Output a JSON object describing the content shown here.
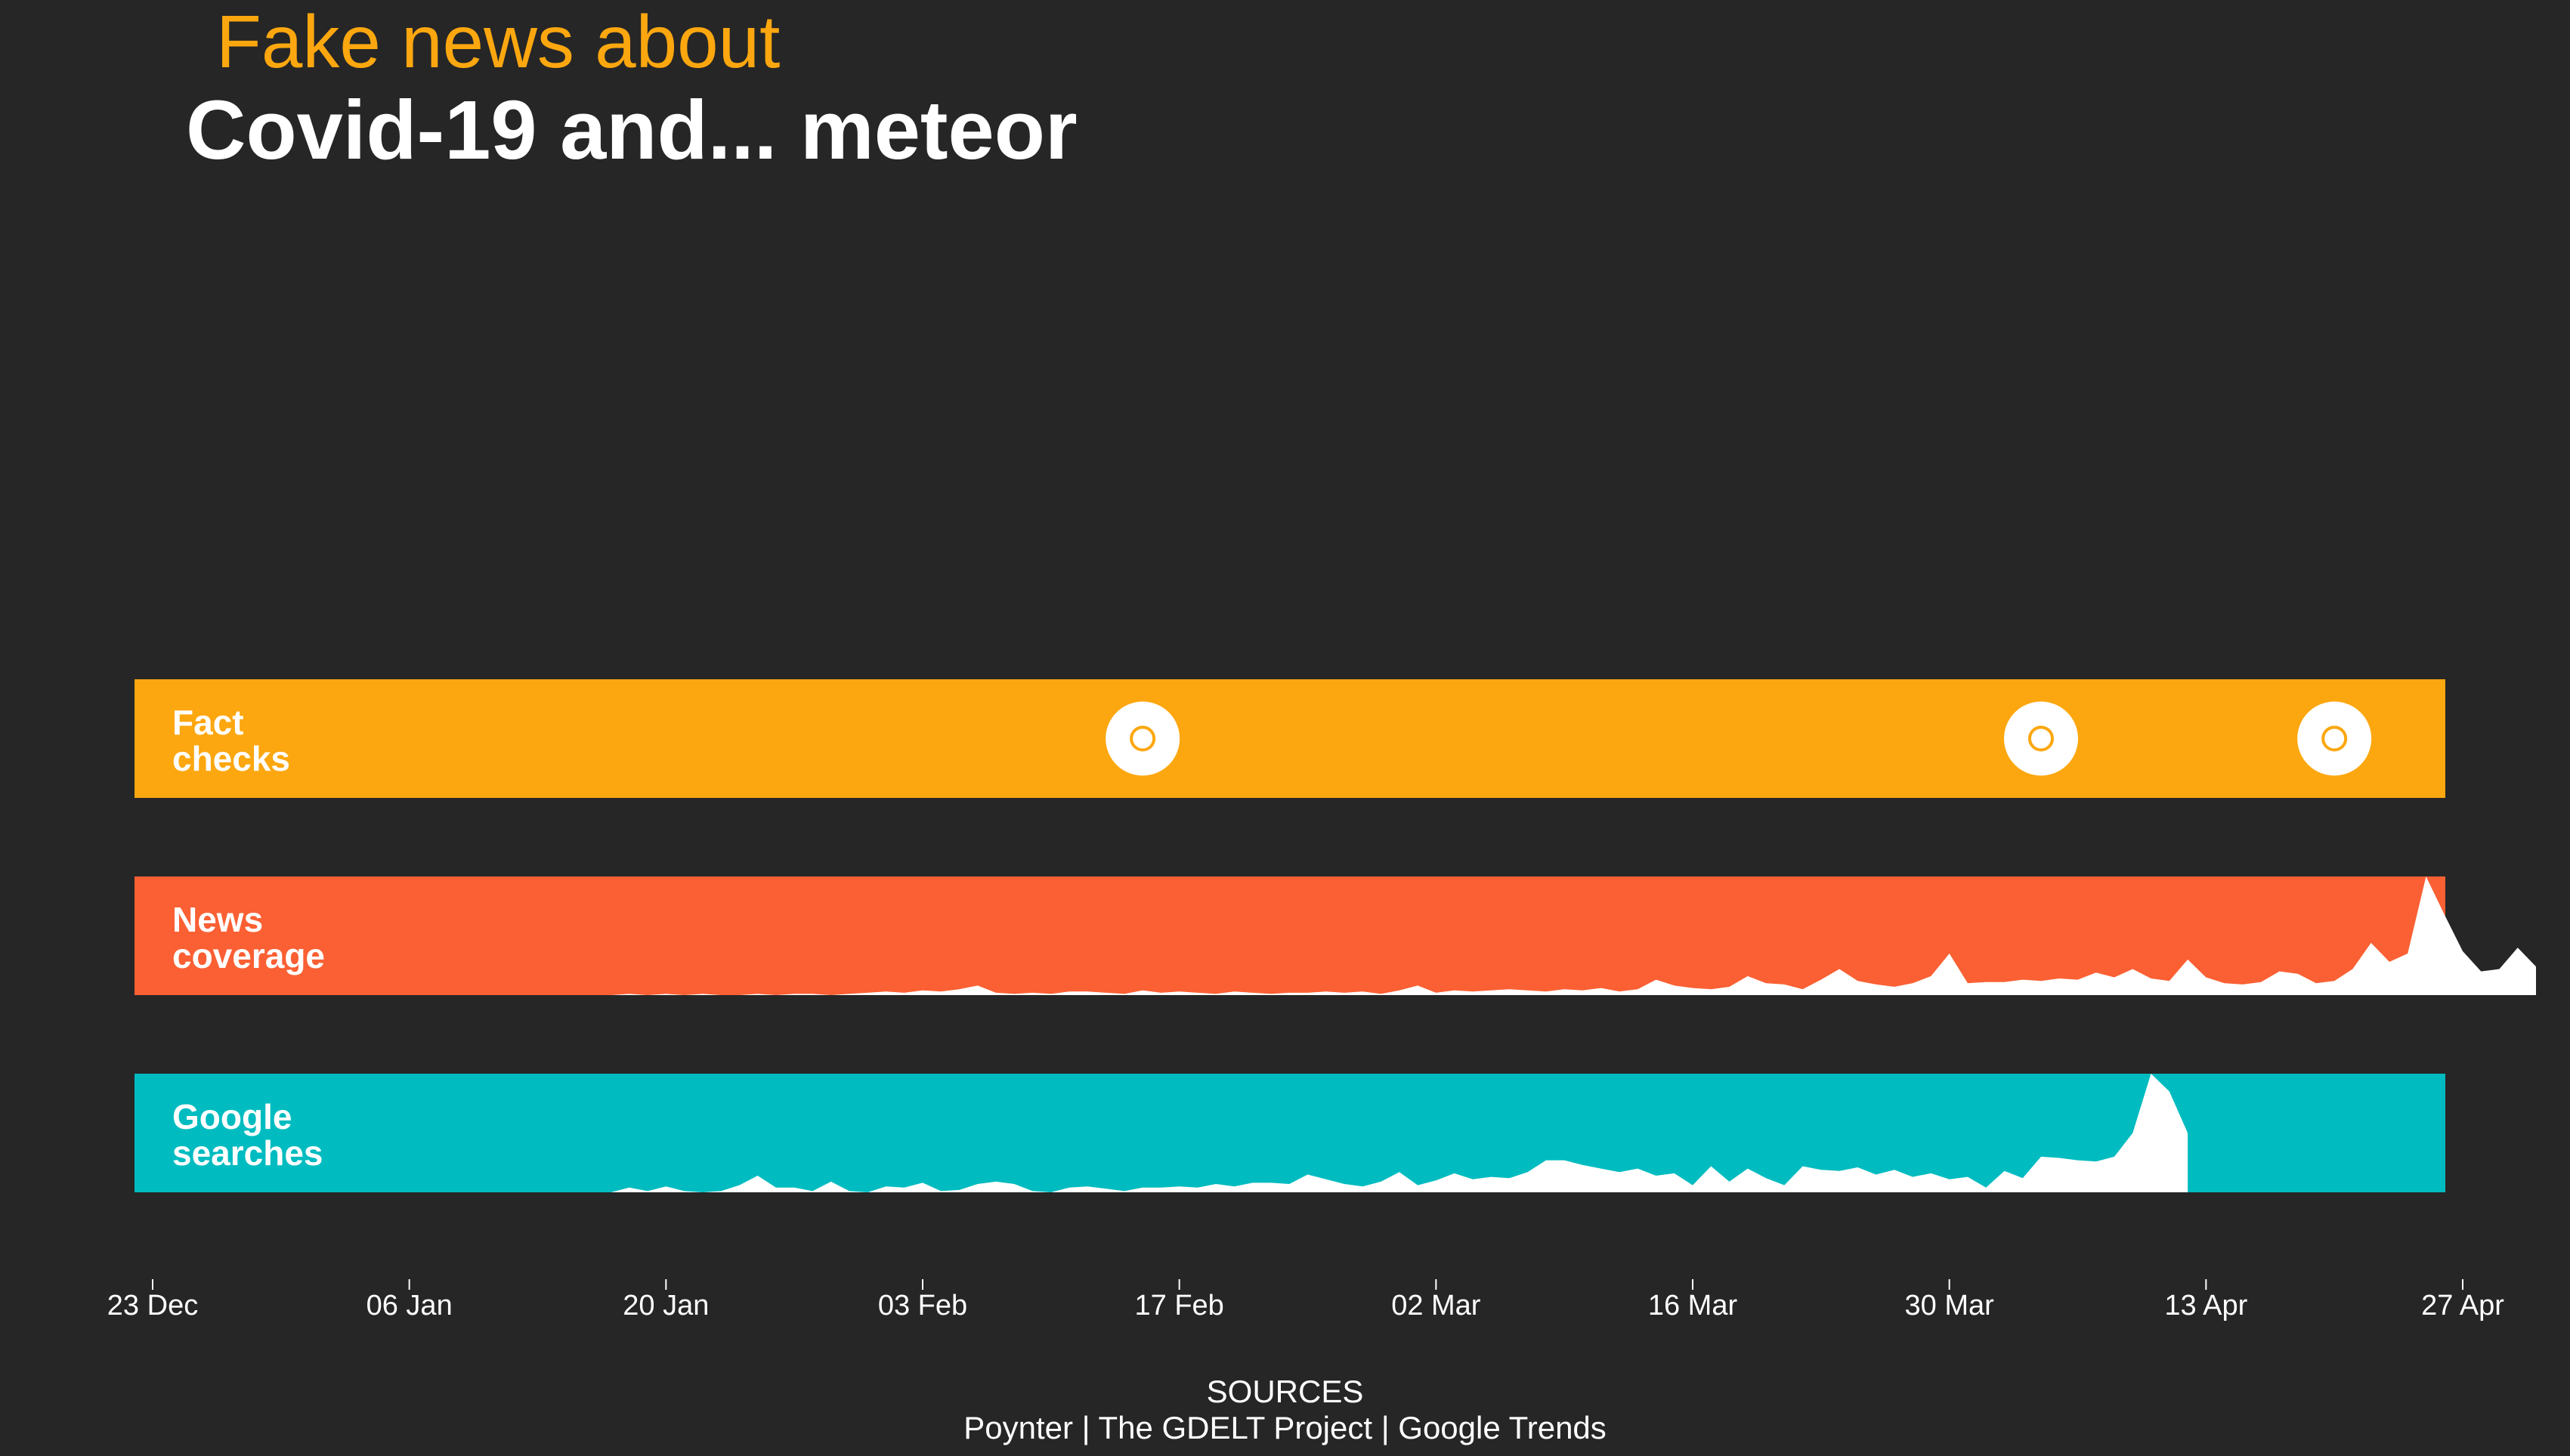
{
  "title": {
    "line1": "Fake news about",
    "line2": "Covid-19 and... meteor"
  },
  "colors": {
    "background": "#262626",
    "fact_checks": "#fca70f",
    "news_coverage": "#fa6033",
    "google_searches": "#00bcc0",
    "fill": "#ffffff"
  },
  "chart_data": {
    "type": "area",
    "x_axis": {
      "start": "2019-12-23",
      "end": "2020-04-27",
      "ticks": [
        "23 Dec",
        "06 Jan",
        "20 Jan",
        "03 Feb",
        "17 Feb",
        "02 Mar",
        "16 Mar",
        "30 Mar",
        "13 Apr",
        "27 Apr"
      ]
    },
    "rows": [
      {
        "name": "Fact checks",
        "label_lines": [
          "Fact",
          "checks"
        ],
        "kind": "events",
        "dates": [
          "2020-02-15",
          "2020-04-04",
          "2020-04-20"
        ]
      },
      {
        "name": "News coverage",
        "label_lines": [
          "News",
          "coverage"
        ],
        "kind": "area",
        "start_date": "2020-01-17",
        "ylim": [
          0,
          100
        ],
        "values": [
          0,
          1,
          0,
          1,
          0,
          1,
          0,
          0,
          1,
          0,
          1,
          1,
          0,
          1,
          2,
          3,
          2,
          4,
          3,
          5,
          8,
          2,
          1,
          2,
          1,
          3,
          3,
          2,
          1,
          4,
          2,
          3,
          2,
          1,
          3,
          2,
          1,
          2,
          2,
          3,
          2,
          3,
          1,
          4,
          8,
          2,
          4,
          3,
          4,
          5,
          4,
          3,
          5,
          4,
          6,
          3,
          5,
          13,
          8,
          6,
          5,
          7,
          16,
          10,
          9,
          5,
          13,
          22,
          12,
          9,
          7,
          10,
          16,
          35,
          10,
          11,
          11,
          13,
          12,
          14,
          13,
          19,
          15,
          22,
          14,
          12,
          30,
          15,
          10,
          9,
          11,
          20,
          18,
          10,
          12,
          22,
          44,
          28,
          35,
          100,
          68,
          37,
          20,
          22,
          40,
          24
        ]
      },
      {
        "name": "Google searches",
        "label_lines": [
          "Google",
          "searches"
        ],
        "kind": "area",
        "start_date": "2020-01-17",
        "ylim": [
          0,
          100
        ],
        "values": [
          0,
          4,
          1,
          5,
          1,
          0,
          1,
          6,
          14,
          4,
          4,
          1,
          9,
          1,
          0,
          5,
          4,
          8,
          1,
          2,
          7,
          9,
          7,
          1,
          0,
          4,
          5,
          3,
          1,
          4,
          4,
          5,
          4,
          7,
          5,
          8,
          8,
          7,
          15,
          11,
          7,
          5,
          9,
          17,
          6,
          10,
          16,
          11,
          13,
          12,
          17,
          27,
          27,
          23,
          20,
          17,
          20,
          14,
          16,
          6,
          22,
          9,
          20,
          12,
          6,
          22,
          19,
          18,
          21,
          15,
          19,
          13,
          16,
          11,
          13,
          4,
          18,
          12,
          30,
          29,
          27,
          26,
          30,
          50,
          100,
          85,
          50
        ]
      }
    ]
  },
  "sources": {
    "heading": "SOURCES",
    "list": "Poynter | The GDELT Project | Google Trends"
  }
}
